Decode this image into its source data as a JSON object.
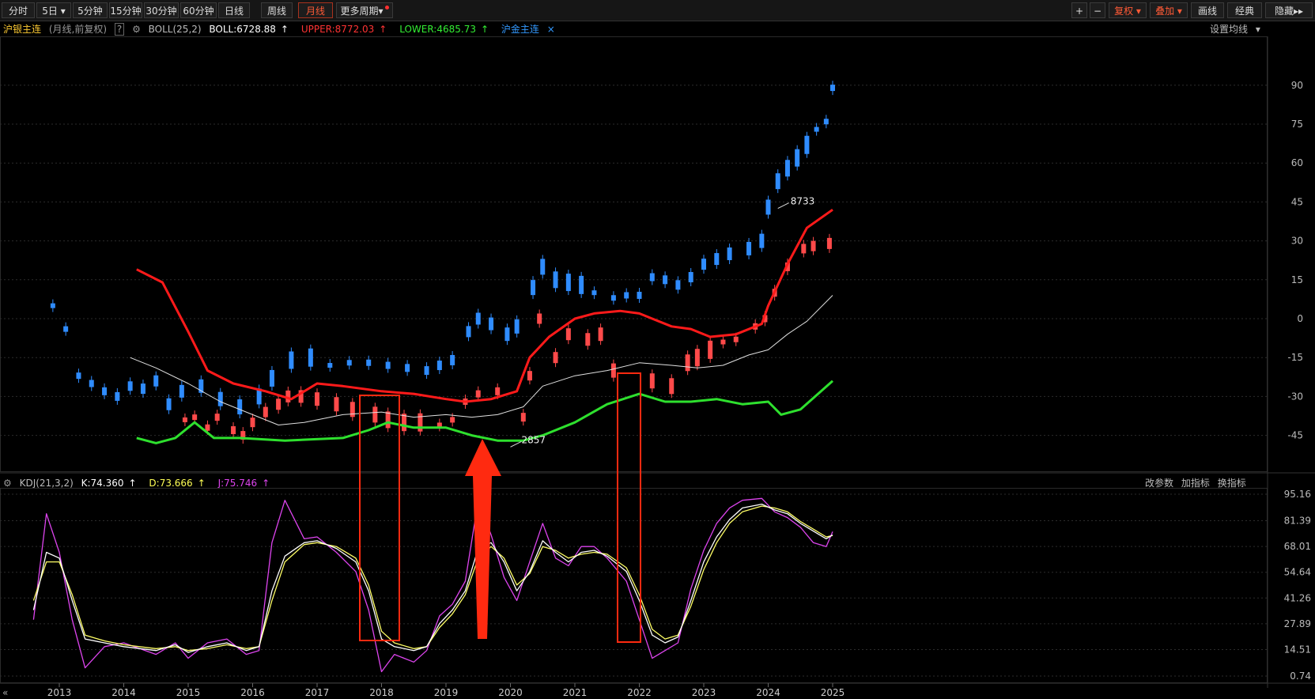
{
  "toolbar": {
    "periods": [
      "分时",
      "5日",
      "5分钟",
      "15分钟",
      "30分钟",
      "60分钟",
      "日线",
      "周线",
      "月线",
      "更多周期"
    ],
    "active_period": "月线",
    "right_buttons": [
      "复权",
      "叠加",
      "画线",
      "经典",
      "隐藏"
    ],
    "plus": "+",
    "minus": "−"
  },
  "main_legend": {
    "name": "沪银主连",
    "desc": "(月线,前复权)",
    "help": "?",
    "indicator": "BOLL(25,2)",
    "boll": "BOLL:6728.88",
    "upper": "UPPER:8772.03",
    "lower": "LOWER:4685.73",
    "overlay": "沪金主连",
    "close": "×",
    "set_ma": "设置均线"
  },
  "sub_legend": {
    "indicator": "KDJ(21,3,2)",
    "k": "K:74.360",
    "d": "D:73.666",
    "j": "J:75.746",
    "buttons": [
      "改参数",
      "加指标",
      "换指标"
    ]
  },
  "colors": {
    "bull": "#ff4a4a",
    "bear": "#2f8cff",
    "upper": "#ff1a1a",
    "mid": "#e0e0e0",
    "lower": "#2ee02e",
    "k": "#ffffff",
    "d": "#ffff66",
    "j": "#dd44ee",
    "annotation": "#ff2a10"
  },
  "chart_data": {
    "type": "candlestick",
    "x_labels": [
      "2013",
      "2014",
      "2015",
      "2016",
      "2017",
      "2018",
      "2019",
      "2020",
      "2021",
      "2022",
      "2023",
      "2024",
      "2025"
    ],
    "main_axis_ticks": [
      "90",
      "75",
      "60",
      "45",
      "30",
      "15",
      "0",
      "-15",
      "-30",
      "-45"
    ],
    "main_annotations": [
      "8733",
      "2857"
    ],
    "kdj_axis_ticks": [
      "95.16",
      "81.39",
      "68.01",
      "54.64",
      "41.26",
      "27.89",
      "14.51",
      "0.74"
    ],
    "upper_band": [
      [
        2014.2,
        19
      ],
      [
        2014.6,
        14
      ],
      [
        2015.0,
        -5
      ],
      [
        2015.3,
        -20
      ],
      [
        2015.7,
        -25
      ],
      [
        2016.2,
        -28
      ],
      [
        2016.6,
        -31
      ],
      [
        2017.0,
        -25
      ],
      [
        2017.4,
        -26
      ],
      [
        2018.0,
        -28
      ],
      [
        2018.5,
        -29
      ],
      [
        2019.0,
        -31
      ],
      [
        2019.3,
        -32
      ],
      [
        2019.7,
        -31
      ],
      [
        2020.1,
        -28
      ],
      [
        2020.3,
        -15
      ],
      [
        2020.6,
        -7
      ],
      [
        2021.0,
        0
      ],
      [
        2021.3,
        2
      ],
      [
        2021.7,
        3
      ],
      [
        2022.0,
        2
      ],
      [
        2022.2,
        0
      ],
      [
        2022.5,
        -3
      ],
      [
        2022.8,
        -4
      ],
      [
        2023.1,
        -7
      ],
      [
        2023.5,
        -6
      ],
      [
        2023.9,
        -2
      ],
      [
        2024.0,
        5
      ],
      [
        2024.3,
        21
      ],
      [
        2024.6,
        35
      ],
      [
        2025.0,
        42
      ]
    ],
    "lower_band": [
      [
        2014.2,
        -46
      ],
      [
        2014.5,
        -48
      ],
      [
        2014.8,
        -46
      ],
      [
        2015.1,
        -40
      ],
      [
        2015.4,
        -46
      ],
      [
        2015.8,
        -46
      ],
      [
        2016.5,
        -47
      ],
      [
        2017.4,
        -46
      ],
      [
        2017.8,
        -43
      ],
      [
        2018.1,
        -40
      ],
      [
        2018.5,
        -42
      ],
      [
        2019.0,
        -42
      ],
      [
        2019.4,
        -45
      ],
      [
        2019.8,
        -47
      ],
      [
        2020.2,
        -47
      ],
      [
        2020.5,
        -45
      ],
      [
        2021.0,
        -40
      ],
      [
        2021.5,
        -33
      ],
      [
        2022.0,
        -29
      ],
      [
        2022.4,
        -32
      ],
      [
        2022.8,
        -32
      ],
      [
        2023.2,
        -31
      ],
      [
        2023.6,
        -33
      ],
      [
        2024.0,
        -32
      ],
      [
        2024.2,
        -37
      ],
      [
        2024.5,
        -35
      ],
      [
        2025.0,
        -24
      ]
    ],
    "mid_band": [
      [
        2014.1,
        -15
      ],
      [
        2014.5,
        -19
      ],
      [
        2015.0,
        -25
      ],
      [
        2015.5,
        -32
      ],
      [
        2016.0,
        -37
      ],
      [
        2016.4,
        -41
      ],
      [
        2016.8,
        -40
      ],
      [
        2017.4,
        -37
      ],
      [
        2018.0,
        -36
      ],
      [
        2018.5,
        -38
      ],
      [
        2019.0,
        -37
      ],
      [
        2019.4,
        -38
      ],
      [
        2019.8,
        -37
      ],
      [
        2020.2,
        -34
      ],
      [
        2020.5,
        -26
      ],
      [
        2021.0,
        -22
      ],
      [
        2021.5,
        -20
      ],
      [
        2022.0,
        -17
      ],
      [
        2022.5,
        -18
      ],
      [
        2022.9,
        -19
      ],
      [
        2023.3,
        -18
      ],
      [
        2023.7,
        -14
      ],
      [
        2024.0,
        -12
      ],
      [
        2024.3,
        -6
      ],
      [
        2024.6,
        -1
      ],
      [
        2025.0,
        9
      ]
    ],
    "candles_up": [
      [
        2014.95,
        -39
      ],
      [
        2015.1,
        -38
      ],
      [
        2015.3,
        -42
      ],
      [
        2015.45,
        -38
      ],
      [
        2015.7,
        -43
      ],
      [
        2015.85,
        -45
      ],
      [
        2016.0,
        -40
      ],
      [
        2016.2,
        -36
      ],
      [
        2016.4,
        -33
      ],
      [
        2016.55,
        -30
      ],
      [
        2016.75,
        -30
      ],
      [
        2017.0,
        -31
      ],
      [
        2017.3,
        -33
      ],
      [
        2017.55,
        -35
      ],
      [
        2017.9,
        -37
      ],
      [
        2018.1,
        -39
      ],
      [
        2018.35,
        -40
      ],
      [
        2018.6,
        -40
      ],
      [
        2018.9,
        -41
      ],
      [
        2019.1,
        -39
      ],
      [
        2019.3,
        -32
      ],
      [
        2019.5,
        -29
      ],
      [
        2019.8,
        -28
      ],
      [
        2020.2,
        -38
      ],
      [
        2020.3,
        -22
      ],
      [
        2020.45,
        0
      ],
      [
        2020.7,
        -15
      ],
      [
        2020.9,
        -6
      ],
      [
        2021.2,
        -8
      ],
      [
        2021.4,
        -6
      ],
      [
        2021.6,
        -20
      ],
      [
        2022.2,
        -24
      ],
      [
        2022.5,
        -26
      ],
      [
        2022.75,
        -17
      ],
      [
        2022.9,
        -15
      ],
      [
        2023.1,
        -12
      ],
      [
        2023.3,
        -9
      ],
      [
        2023.5,
        -8
      ],
      [
        2023.8,
        -3
      ],
      [
        2023.95,
        0
      ],
      [
        2024.1,
        10
      ],
      [
        2024.3,
        20
      ],
      [
        2024.55,
        27
      ],
      [
        2024.7,
        28
      ],
      [
        2024.95,
        29
      ]
    ],
    "candles_down": [
      [
        2012.9,
        5
      ],
      [
        2013.1,
        -4
      ],
      [
        2013.3,
        -22
      ],
      [
        2013.5,
        -25
      ],
      [
        2013.7,
        -28
      ],
      [
        2013.9,
        -30
      ],
      [
        2014.1,
        -26
      ],
      [
        2014.3,
        -27
      ],
      [
        2014.5,
        -24
      ],
      [
        2014.7,
        -33
      ],
      [
        2014.9,
        -28
      ],
      [
        2015.2,
        -26
      ],
      [
        2015.5,
        -31
      ],
      [
        2015.8,
        -34
      ],
      [
        2016.1,
        -30
      ],
      [
        2016.3,
        -23
      ],
      [
        2016.6,
        -16
      ],
      [
        2016.9,
        -15
      ],
      [
        2017.2,
        -18
      ],
      [
        2017.5,
        -17
      ],
      [
        2017.8,
        -17
      ],
      [
        2018.1,
        -18
      ],
      [
        2018.4,
        -19
      ],
      [
        2018.7,
        -20
      ],
      [
        2018.9,
        -18
      ],
      [
        2019.1,
        -16
      ],
      [
        2019.35,
        -5
      ],
      [
        2019.5,
        0
      ],
      [
        2019.7,
        -2
      ],
      [
        2019.95,
        -6
      ],
      [
        2020.1,
        -3
      ],
      [
        2020.35,
        12
      ],
      [
        2020.5,
        20
      ],
      [
        2020.7,
        15
      ],
      [
        2020.9,
        14
      ],
      [
        2021.1,
        13
      ],
      [
        2021.3,
        10
      ],
      [
        2021.6,
        8
      ],
      [
        2021.8,
        9
      ],
      [
        2022.0,
        9
      ],
      [
        2022.2,
        16
      ],
      [
        2022.4,
        15
      ],
      [
        2022.6,
        13
      ],
      [
        2022.8,
        16
      ],
      [
        2023.0,
        21
      ],
      [
        2023.2,
        23
      ],
      [
        2023.4,
        25
      ],
      [
        2023.7,
        27
      ],
      [
        2023.9,
        30
      ],
      [
        2024.0,
        43
      ],
      [
        2024.15,
        53
      ],
      [
        2024.3,
        58
      ],
      [
        2024.45,
        62
      ],
      [
        2024.6,
        67
      ],
      [
        2024.75,
        73
      ],
      [
        2024.9,
        76
      ],
      [
        2025.0,
        89
      ]
    ],
    "kdj_k": [
      [
        2012.6,
        35
      ],
      [
        2012.8,
        65
      ],
      [
        2013.0,
        62
      ],
      [
        2013.2,
        40
      ],
      [
        2013.4,
        20
      ],
      [
        2013.7,
        18
      ],
      [
        2014.0,
        16
      ],
      [
        2014.5,
        14
      ],
      [
        2014.8,
        17
      ],
      [
        2015.0,
        13
      ],
      [
        2015.3,
        16
      ],
      [
        2015.6,
        18
      ],
      [
        2015.9,
        14
      ],
      [
        2016.1,
        16
      ],
      [
        2016.3,
        45
      ],
      [
        2016.5,
        63
      ],
      [
        2016.8,
        70
      ],
      [
        2017.0,
        71
      ],
      [
        2017.3,
        67
      ],
      [
        2017.6,
        60
      ],
      [
        2017.8,
        45
      ],
      [
        2018.0,
        20
      ],
      [
        2018.2,
        16
      ],
      [
        2018.5,
        14
      ],
      [
        2018.7,
        16
      ],
      [
        2018.9,
        28
      ],
      [
        2019.1,
        35
      ],
      [
        2019.3,
        45
      ],
      [
        2019.5,
        67
      ],
      [
        2019.7,
        70
      ],
      [
        2019.9,
        60
      ],
      [
        2020.1,
        45
      ],
      [
        2020.3,
        55
      ],
      [
        2020.5,
        71
      ],
      [
        2020.7,
        65
      ],
      [
        2020.9,
        60
      ],
      [
        2021.1,
        65
      ],
      [
        2021.3,
        66
      ],
      [
        2021.5,
        63
      ],
      [
        2021.8,
        55
      ],
      [
        2022.0,
        40
      ],
      [
        2022.2,
        22
      ],
      [
        2022.4,
        18
      ],
      [
        2022.6,
        21
      ],
      [
        2022.8,
        40
      ],
      [
        2023.0,
        60
      ],
      [
        2023.2,
        73
      ],
      [
        2023.4,
        82
      ],
      [
        2023.6,
        88
      ],
      [
        2023.9,
        90
      ],
      [
        2024.1,
        87
      ],
      [
        2024.3,
        85
      ],
      [
        2024.5,
        80
      ],
      [
        2024.7,
        76
      ],
      [
        2024.9,
        72
      ],
      [
        2025.0,
        74
      ]
    ],
    "kdj_d": [
      [
        2012.6,
        40
      ],
      [
        2012.8,
        60
      ],
      [
        2013.0,
        60
      ],
      [
        2013.2,
        43
      ],
      [
        2013.4,
        22
      ],
      [
        2013.7,
        19
      ],
      [
        2014.0,
        17
      ],
      [
        2014.5,
        15
      ],
      [
        2014.8,
        16
      ],
      [
        2015.0,
        14
      ],
      [
        2015.3,
        15
      ],
      [
        2015.6,
        17
      ],
      [
        2015.9,
        15
      ],
      [
        2016.1,
        16
      ],
      [
        2016.3,
        40
      ],
      [
        2016.5,
        60
      ],
      [
        2016.8,
        69
      ],
      [
        2017.0,
        70
      ],
      [
        2017.3,
        68
      ],
      [
        2017.6,
        62
      ],
      [
        2017.8,
        48
      ],
      [
        2018.0,
        24
      ],
      [
        2018.2,
        18
      ],
      [
        2018.5,
        15
      ],
      [
        2018.7,
        16
      ],
      [
        2018.9,
        26
      ],
      [
        2019.1,
        33
      ],
      [
        2019.3,
        43
      ],
      [
        2019.5,
        62
      ],
      [
        2019.7,
        68
      ],
      [
        2019.9,
        62
      ],
      [
        2020.1,
        48
      ],
      [
        2020.3,
        54
      ],
      [
        2020.5,
        68
      ],
      [
        2020.7,
        66
      ],
      [
        2020.9,
        62
      ],
      [
        2021.1,
        64
      ],
      [
        2021.3,
        65
      ],
      [
        2021.5,
        64
      ],
      [
        2021.8,
        57
      ],
      [
        2022.0,
        43
      ],
      [
        2022.2,
        25
      ],
      [
        2022.4,
        20
      ],
      [
        2022.6,
        22
      ],
      [
        2022.8,
        37
      ],
      [
        2023.0,
        56
      ],
      [
        2023.2,
        70
      ],
      [
        2023.4,
        80
      ],
      [
        2023.6,
        86
      ],
      [
        2023.9,
        89
      ],
      [
        2024.1,
        88
      ],
      [
        2024.3,
        86
      ],
      [
        2024.5,
        81
      ],
      [
        2024.7,
        77
      ],
      [
        2024.9,
        73
      ],
      [
        2025.0,
        73.7
      ]
    ],
    "kdj_j": [
      [
        2012.6,
        30
      ],
      [
        2012.8,
        85
      ],
      [
        2013.0,
        65
      ],
      [
        2013.2,
        30
      ],
      [
        2013.4,
        5
      ],
      [
        2013.7,
        16
      ],
      [
        2014.0,
        18
      ],
      [
        2014.5,
        12
      ],
      [
        2014.8,
        18
      ],
      [
        2015.0,
        10
      ],
      [
        2015.3,
        18
      ],
      [
        2015.6,
        20
      ],
      [
        2015.9,
        12
      ],
      [
        2016.1,
        14
      ],
      [
        2016.3,
        70
      ],
      [
        2016.5,
        92
      ],
      [
        2016.8,
        72
      ],
      [
        2017.0,
        73
      ],
      [
        2017.3,
        65
      ],
      [
        2017.6,
        55
      ],
      [
        2017.8,
        35
      ],
      [
        2018.0,
        3
      ],
      [
        2018.2,
        12
      ],
      [
        2018.5,
        8
      ],
      [
        2018.7,
        14
      ],
      [
        2018.9,
        32
      ],
      [
        2019.1,
        38
      ],
      [
        2019.3,
        50
      ],
      [
        2019.5,
        92
      ],
      [
        2019.7,
        74
      ],
      [
        2019.9,
        52
      ],
      [
        2020.1,
        40
      ],
      [
        2020.3,
        60
      ],
      [
        2020.5,
        80
      ],
      [
        2020.7,
        62
      ],
      [
        2020.9,
        58
      ],
      [
        2021.1,
        68
      ],
      [
        2021.3,
        68
      ],
      [
        2021.5,
        62
      ],
      [
        2021.8,
        50
      ],
      [
        2022.0,
        30
      ],
      [
        2022.2,
        10
      ],
      [
        2022.4,
        14
      ],
      [
        2022.6,
        18
      ],
      [
        2022.8,
        46
      ],
      [
        2023.0,
        66
      ],
      [
        2023.2,
        80
      ],
      [
        2023.4,
        88
      ],
      [
        2023.6,
        92
      ],
      [
        2023.9,
        93
      ],
      [
        2024.1,
        86
      ],
      [
        2024.3,
        83
      ],
      [
        2024.5,
        78
      ],
      [
        2024.7,
        70
      ],
      [
        2024.9,
        68
      ],
      [
        2025.0,
        75.7
      ]
    ]
  }
}
